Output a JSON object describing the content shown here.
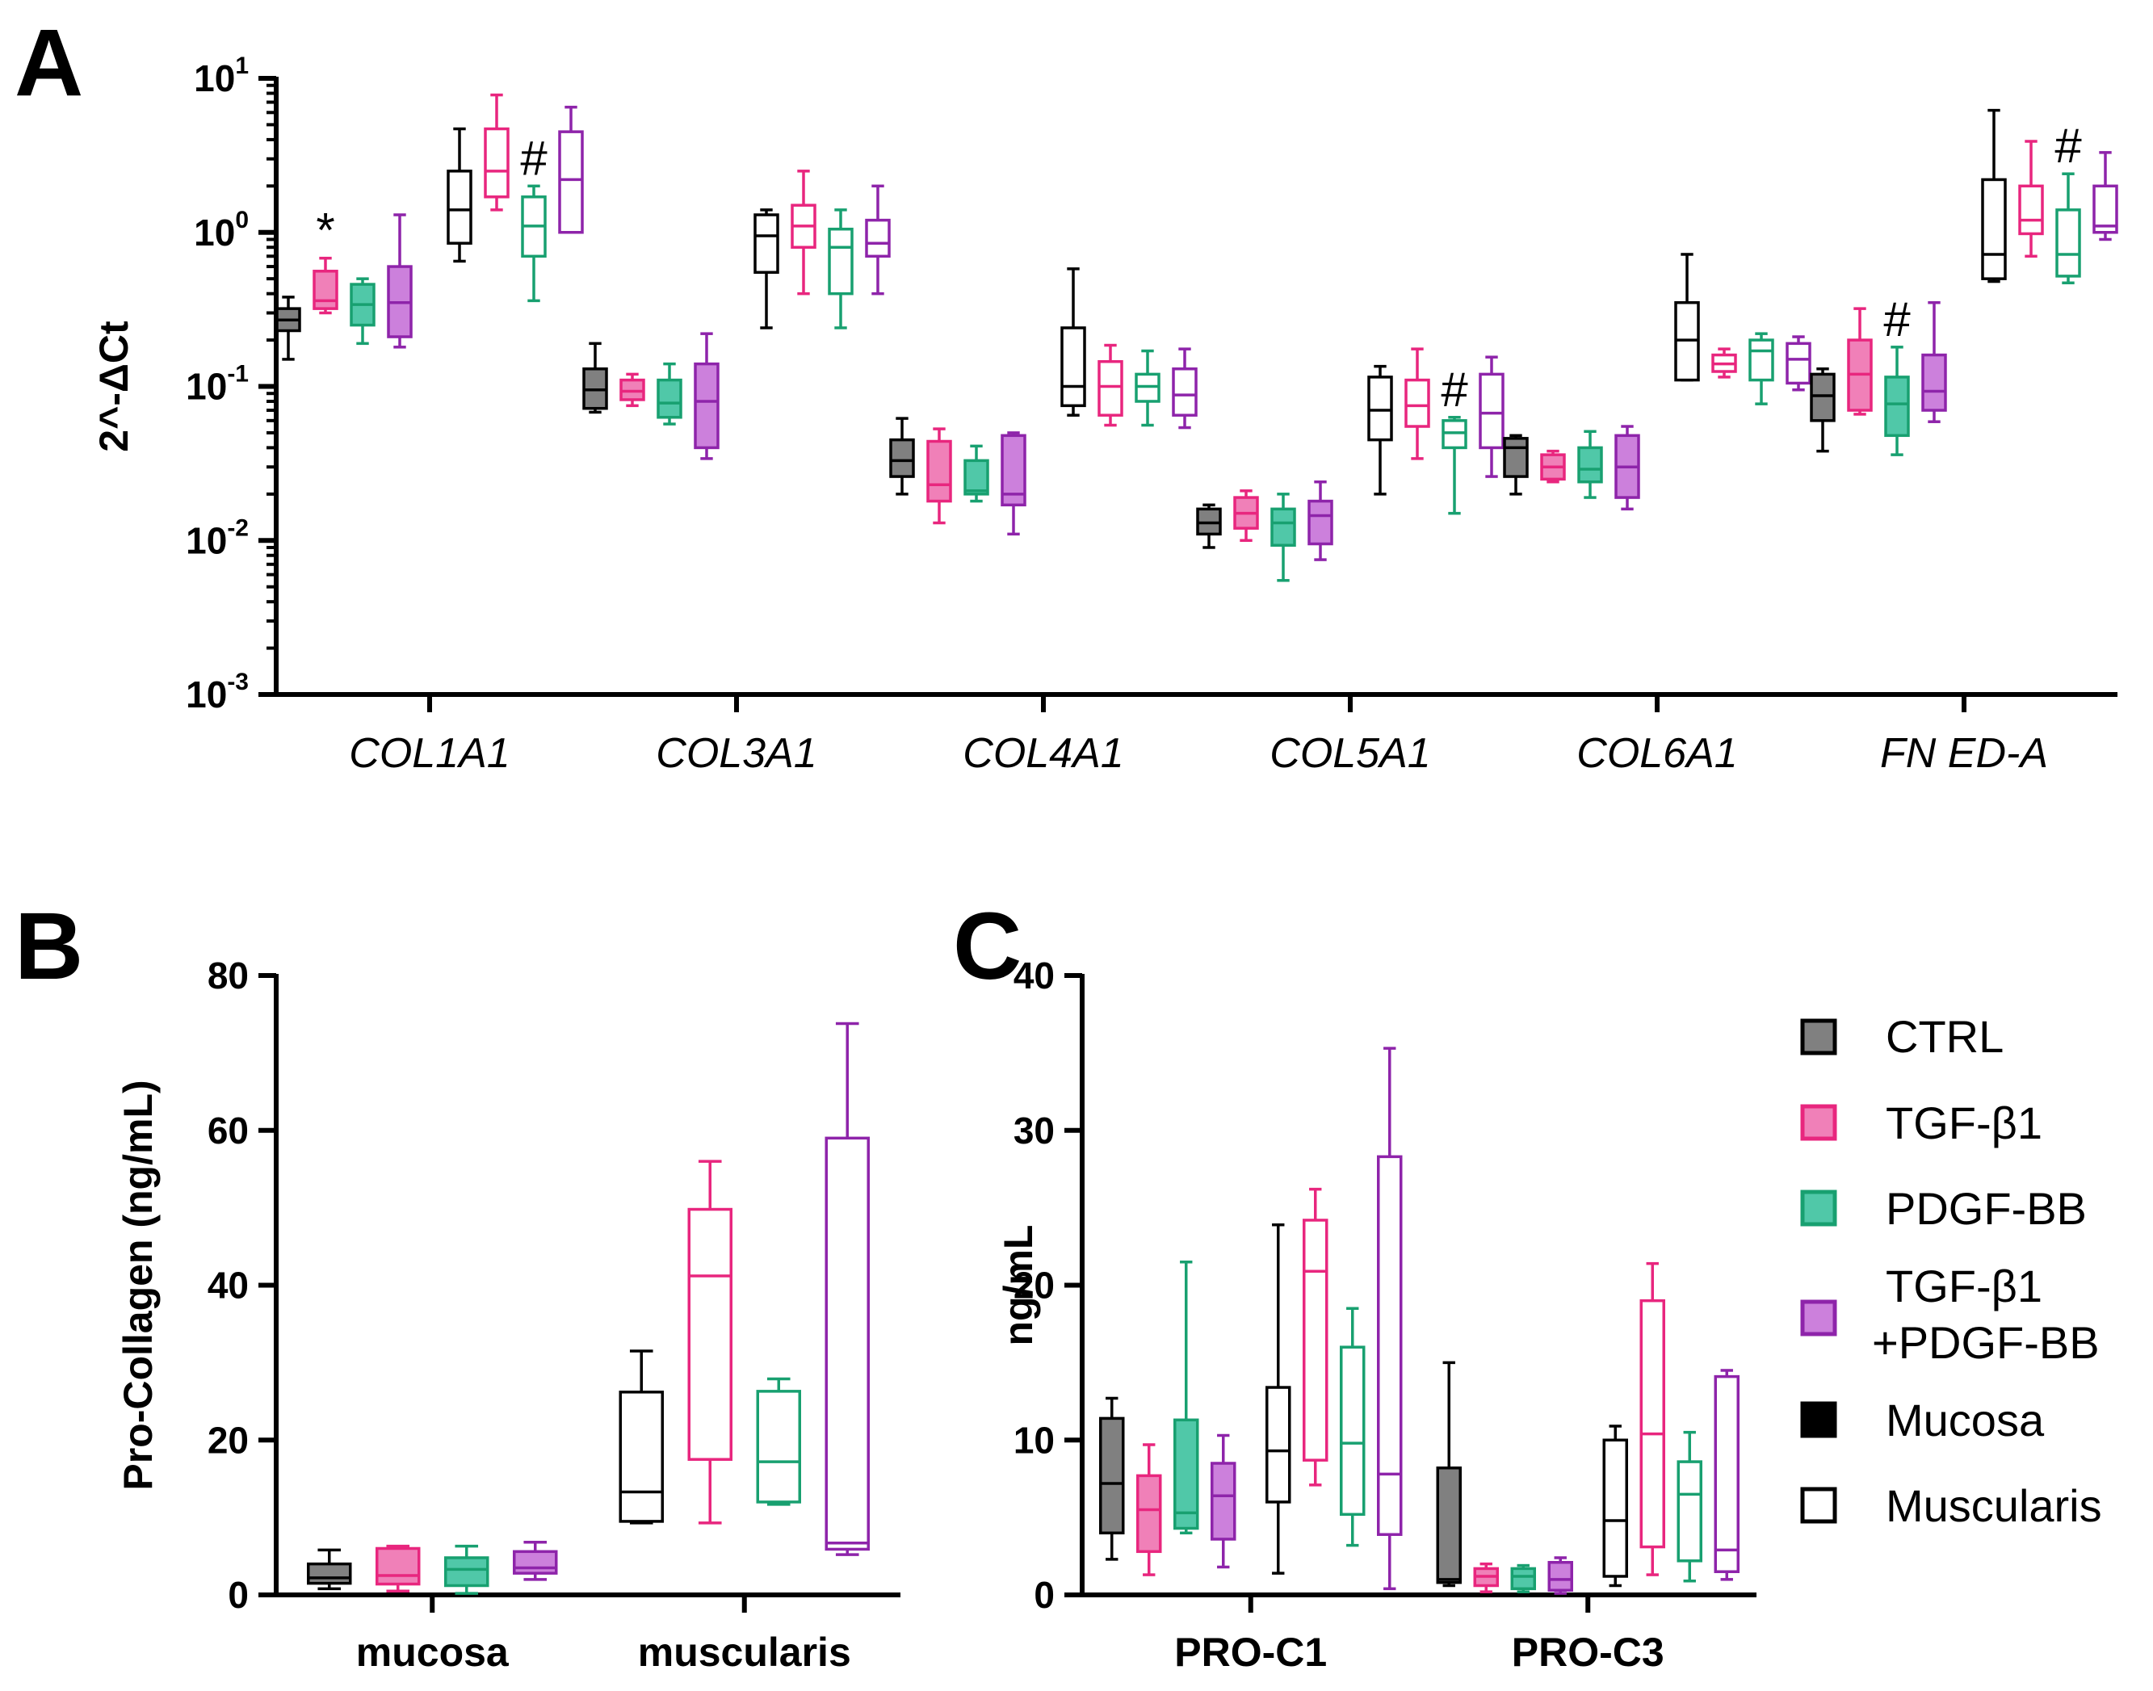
{
  "groups": [
    {
      "name": "CTRL",
      "color": "#000000",
      "fill": "#808080"
    },
    {
      "name": "TGF-β1",
      "color": "#E8267E",
      "fill": "#F080B8"
    },
    {
      "name": "PDGF-BB",
      "color": "#18A070",
      "fill": "#50C8A8"
    },
    {
      "name": "TGF-β1\n+PDGF-BB",
      "color": "#8E24AA",
      "fill": "#CC80DC"
    }
  ],
  "legend": {
    "items": [
      "CTRL",
      "TGF-β1",
      "PDGF-BB",
      "TGF-β1",
      "+PDGF-BB",
      "Mucosa",
      "Muscularis"
    ]
  },
  "chart_data": [
    {
      "panel": "A",
      "type": "box",
      "scale": "log",
      "ylabel": "2^-ΔCt",
      "ylim": [
        0.001,
        10
      ],
      "yticks": [
        {
          "base": "10",
          "exp": "1"
        },
        {
          "base": "10",
          "exp": "0"
        },
        {
          "base": "10",
          "exp": "-1"
        },
        {
          "base": "10",
          "exp": "-2"
        },
        {
          "base": "10",
          "exp": "-3"
        }
      ],
      "categories": [
        "COL1A1",
        "COL3A1",
        "COL4A1",
        "COL5A1",
        "COL6A1",
        "FN ED-A"
      ],
      "tissues": [
        "Mucosa",
        "Muscularis"
      ],
      "boxes": [
        {
          "cat": 0,
          "tissue": 0,
          "group": 0,
          "min": 0.15,
          "q1": 0.23,
          "med": 0.27,
          "q3": 0.32,
          "max": 0.38
        },
        {
          "cat": 0,
          "tissue": 0,
          "group": 1,
          "min": 0.3,
          "q1": 0.32,
          "med": 0.36,
          "q3": 0.56,
          "max": 0.68,
          "annot": "*"
        },
        {
          "cat": 0,
          "tissue": 0,
          "group": 2,
          "min": 0.19,
          "q1": 0.25,
          "med": 0.34,
          "q3": 0.46,
          "max": 0.5
        },
        {
          "cat": 0,
          "tissue": 0,
          "group": 3,
          "min": 0.18,
          "q1": 0.21,
          "med": 0.35,
          "q3": 0.6,
          "max": 1.3
        },
        {
          "cat": 0,
          "tissue": 1,
          "group": 0,
          "min": 0.65,
          "q1": 0.85,
          "med": 1.4,
          "q3": 2.5,
          "max": 4.7
        },
        {
          "cat": 0,
          "tissue": 1,
          "group": 1,
          "min": 1.4,
          "q1": 1.7,
          "med": 2.5,
          "q3": 4.7,
          "max": 7.8
        },
        {
          "cat": 0,
          "tissue": 1,
          "group": 2,
          "min": 0.36,
          "q1": 0.7,
          "med": 1.1,
          "q3": 1.7,
          "max": 2.0,
          "annot": "#"
        },
        {
          "cat": 0,
          "tissue": 1,
          "group": 3,
          "min": 1.0,
          "q1": 1.0,
          "med": 2.2,
          "q3": 4.5,
          "max": 6.5
        },
        {
          "cat": 1,
          "tissue": 0,
          "group": 0,
          "min": 0.068,
          "q1": 0.072,
          "med": 0.095,
          "q3": 0.13,
          "max": 0.19
        },
        {
          "cat": 1,
          "tissue": 0,
          "group": 1,
          "min": 0.075,
          "q1": 0.082,
          "med": 0.093,
          "q3": 0.11,
          "max": 0.12
        },
        {
          "cat": 1,
          "tissue": 0,
          "group": 2,
          "min": 0.057,
          "q1": 0.063,
          "med": 0.078,
          "q3": 0.11,
          "max": 0.14
        },
        {
          "cat": 1,
          "tissue": 0,
          "group": 3,
          "min": 0.034,
          "q1": 0.04,
          "med": 0.08,
          "q3": 0.14,
          "max": 0.22
        },
        {
          "cat": 1,
          "tissue": 1,
          "group": 0,
          "min": 0.24,
          "q1": 0.55,
          "med": 0.95,
          "q3": 1.3,
          "max": 1.4
        },
        {
          "cat": 1,
          "tissue": 1,
          "group": 1,
          "min": 0.4,
          "q1": 0.8,
          "med": 1.1,
          "q3": 1.5,
          "max": 2.5
        },
        {
          "cat": 1,
          "tissue": 1,
          "group": 2,
          "min": 0.24,
          "q1": 0.4,
          "med": 0.8,
          "q3": 1.05,
          "max": 1.4
        },
        {
          "cat": 1,
          "tissue": 1,
          "group": 3,
          "min": 0.4,
          "q1": 0.7,
          "med": 0.85,
          "q3": 1.2,
          "max": 2.0
        },
        {
          "cat": 2,
          "tissue": 0,
          "group": 0,
          "min": 0.02,
          "q1": 0.026,
          "med": 0.033,
          "q3": 0.045,
          "max": 0.062
        },
        {
          "cat": 2,
          "tissue": 0,
          "group": 1,
          "min": 0.013,
          "q1": 0.018,
          "med": 0.023,
          "q3": 0.044,
          "max": 0.053
        },
        {
          "cat": 2,
          "tissue": 0,
          "group": 2,
          "min": 0.018,
          "q1": 0.02,
          "med": 0.021,
          "q3": 0.033,
          "max": 0.041
        },
        {
          "cat": 2,
          "tissue": 0,
          "group": 3,
          "min": 0.011,
          "q1": 0.017,
          "med": 0.02,
          "q3": 0.048,
          "max": 0.05
        },
        {
          "cat": 2,
          "tissue": 1,
          "group": 0,
          "min": 0.065,
          "q1": 0.075,
          "med": 0.1,
          "q3": 0.24,
          "max": 0.58
        },
        {
          "cat": 2,
          "tissue": 1,
          "group": 1,
          "min": 0.056,
          "q1": 0.065,
          "med": 0.1,
          "q3": 0.145,
          "max": 0.185
        },
        {
          "cat": 2,
          "tissue": 1,
          "group": 2,
          "min": 0.056,
          "q1": 0.08,
          "med": 0.1,
          "q3": 0.12,
          "max": 0.17
        },
        {
          "cat": 2,
          "tissue": 1,
          "group": 3,
          "min": 0.054,
          "q1": 0.065,
          "med": 0.088,
          "q3": 0.13,
          "max": 0.175
        },
        {
          "cat": 3,
          "tissue": 0,
          "group": 0,
          "min": 0.009,
          "q1": 0.011,
          "med": 0.013,
          "q3": 0.016,
          "max": 0.017
        },
        {
          "cat": 3,
          "tissue": 0,
          "group": 1,
          "min": 0.01,
          "q1": 0.012,
          "med": 0.015,
          "q3": 0.019,
          "max": 0.021
        },
        {
          "cat": 3,
          "tissue": 0,
          "group": 2,
          "min": 0.0055,
          "q1": 0.0093,
          "med": 0.013,
          "q3": 0.016,
          "max": 0.02
        },
        {
          "cat": 3,
          "tissue": 0,
          "group": 3,
          "min": 0.0075,
          "q1": 0.0095,
          "med": 0.0145,
          "q3": 0.018,
          "max": 0.024
        },
        {
          "cat": 3,
          "tissue": 1,
          "group": 0,
          "min": 0.02,
          "q1": 0.045,
          "med": 0.07,
          "q3": 0.115,
          "max": 0.135
        },
        {
          "cat": 3,
          "tissue": 1,
          "group": 1,
          "min": 0.034,
          "q1": 0.055,
          "med": 0.075,
          "q3": 0.11,
          "max": 0.175
        },
        {
          "cat": 3,
          "tissue": 1,
          "group": 2,
          "min": 0.015,
          "q1": 0.04,
          "med": 0.05,
          "q3": 0.06,
          "max": 0.063,
          "annot": "#"
        },
        {
          "cat": 3,
          "tissue": 1,
          "group": 3,
          "min": 0.026,
          "q1": 0.04,
          "med": 0.067,
          "q3": 0.12,
          "max": 0.155
        },
        {
          "cat": 4,
          "tissue": 0,
          "group": 0,
          "min": 0.02,
          "q1": 0.026,
          "med": 0.04,
          "q3": 0.046,
          "max": 0.048
        },
        {
          "cat": 4,
          "tissue": 0,
          "group": 1,
          "min": 0.024,
          "q1": 0.025,
          "med": 0.03,
          "q3": 0.036,
          "max": 0.038
        },
        {
          "cat": 4,
          "tissue": 0,
          "group": 2,
          "min": 0.019,
          "q1": 0.024,
          "med": 0.029,
          "q3": 0.04,
          "max": 0.051
        },
        {
          "cat": 4,
          "tissue": 0,
          "group": 3,
          "min": 0.016,
          "q1": 0.019,
          "med": 0.03,
          "q3": 0.048,
          "max": 0.055
        },
        {
          "cat": 4,
          "tissue": 1,
          "group": 0,
          "min": 0.11,
          "q1": 0.11,
          "med": 0.2,
          "q3": 0.35,
          "max": 0.72
        },
        {
          "cat": 4,
          "tissue": 1,
          "group": 1,
          "min": 0.115,
          "q1": 0.125,
          "med": 0.14,
          "q3": 0.16,
          "max": 0.175
        },
        {
          "cat": 4,
          "tissue": 1,
          "group": 2,
          "min": 0.077,
          "q1": 0.11,
          "med": 0.17,
          "q3": 0.2,
          "max": 0.22
        },
        {
          "cat": 4,
          "tissue": 1,
          "group": 3,
          "min": 0.095,
          "q1": 0.105,
          "med": 0.15,
          "q3": 0.19,
          "max": 0.21
        },
        {
          "cat": 5,
          "tissue": 0,
          "group": 0,
          "min": 0.038,
          "q1": 0.06,
          "med": 0.087,
          "q3": 0.12,
          "max": 0.13
        },
        {
          "cat": 5,
          "tissue": 0,
          "group": 1,
          "min": 0.066,
          "q1": 0.07,
          "med": 0.12,
          "q3": 0.2,
          "max": 0.32
        },
        {
          "cat": 5,
          "tissue": 0,
          "group": 2,
          "min": 0.036,
          "q1": 0.048,
          "med": 0.077,
          "q3": 0.115,
          "max": 0.18,
          "annot": "#"
        },
        {
          "cat": 5,
          "tissue": 0,
          "group": 3,
          "min": 0.059,
          "q1": 0.07,
          "med": 0.093,
          "q3": 0.16,
          "max": 0.35
        },
        {
          "cat": 5,
          "tissue": 1,
          "group": 0,
          "min": 0.48,
          "q1": 0.5,
          "med": 0.72,
          "q3": 2.2,
          "max": 6.2
        },
        {
          "cat": 5,
          "tissue": 1,
          "group": 1,
          "min": 0.7,
          "q1": 0.98,
          "med": 1.2,
          "q3": 2.0,
          "max": 3.9
        },
        {
          "cat": 5,
          "tissue": 1,
          "group": 2,
          "min": 0.47,
          "q1": 0.52,
          "med": 0.72,
          "q3": 1.4,
          "max": 2.4,
          "annot": "#"
        },
        {
          "cat": 5,
          "tissue": 1,
          "group": 3,
          "min": 0.9,
          "q1": 1.0,
          "med": 1.1,
          "q3": 2.0,
          "max": 3.3
        }
      ]
    },
    {
      "panel": "B",
      "type": "box",
      "scale": "linear",
      "ylabel": "Pro-Collagen (ng/mL)",
      "ylim": [
        0,
        80
      ],
      "yticks": [
        "0",
        "20",
        "40",
        "60",
        "80"
      ],
      "categories": [
        "mucosa",
        "muscularis"
      ],
      "boxes": [
        {
          "cat": 0,
          "group": 0,
          "min": 0.8,
          "q1": 1.5,
          "med": 2.2,
          "q3": 4.0,
          "max": 5.8
        },
        {
          "cat": 0,
          "group": 1,
          "min": 0.5,
          "q1": 1.4,
          "med": 2.5,
          "q3": 6.0,
          "max": 6.3
        },
        {
          "cat": 0,
          "group": 2,
          "min": 0.2,
          "q1": 1.2,
          "med": 3.3,
          "q3": 4.8,
          "max": 6.3
        },
        {
          "cat": 0,
          "group": 3,
          "min": 2.0,
          "q1": 2.8,
          "med": 3.5,
          "q3": 5.6,
          "max": 6.8
        },
        {
          "cat": 1,
          "group": 0,
          "min": 9.3,
          "q1": 9.5,
          "med": 13.3,
          "q3": 26.2,
          "max": 31.5
        },
        {
          "cat": 1,
          "group": 1,
          "min": 9.3,
          "q1": 17.5,
          "med": 41.2,
          "q3": 49.8,
          "max": 56.0
        },
        {
          "cat": 1,
          "group": 2,
          "min": 11.7,
          "q1": 12.0,
          "med": 17.2,
          "q3": 26.3,
          "max": 27.9
        },
        {
          "cat": 1,
          "group": 3,
          "min": 5.2,
          "q1": 5.9,
          "med": 6.7,
          "q3": 59.0,
          "max": 73.8
        }
      ]
    },
    {
      "panel": "C",
      "type": "box",
      "scale": "linear",
      "ylabel": "ng/mL",
      "ylim": [
        0,
        40
      ],
      "yticks": [
        "0",
        "10",
        "20",
        "30",
        "40"
      ],
      "categories": [
        "PRO-C1",
        "PRO-C3"
      ],
      "tissues": [
        "Mucosa",
        "Muscularis"
      ],
      "boxes": [
        {
          "cat": 0,
          "tissue": 0,
          "group": 0,
          "min": 2.3,
          "q1": 4.0,
          "med": 7.2,
          "q3": 11.4,
          "max": 12.7
        },
        {
          "cat": 0,
          "tissue": 0,
          "group": 1,
          "min": 1.3,
          "q1": 2.8,
          "med": 5.5,
          "q3": 7.7,
          "max": 9.7
        },
        {
          "cat": 0,
          "tissue": 0,
          "group": 2,
          "min": 4.0,
          "q1": 4.3,
          "med": 5.3,
          "q3": 11.3,
          "max": 21.5
        },
        {
          "cat": 0,
          "tissue": 0,
          "group": 3,
          "min": 1.8,
          "q1": 3.6,
          "med": 6.4,
          "q3": 8.5,
          "max": 10.3
        },
        {
          "cat": 0,
          "tissue": 1,
          "group": 0,
          "min": 1.4,
          "q1": 6.0,
          "med": 9.3,
          "q3": 13.4,
          "max": 23.9
        },
        {
          "cat": 0,
          "tissue": 1,
          "group": 1,
          "min": 7.1,
          "q1": 8.7,
          "med": 20.9,
          "q3": 24.2,
          "max": 26.2
        },
        {
          "cat": 0,
          "tissue": 1,
          "group": 2,
          "min": 3.2,
          "q1": 5.2,
          "med": 9.8,
          "q3": 16.0,
          "max": 18.5
        },
        {
          "cat": 0,
          "tissue": 1,
          "group": 3,
          "min": 0.4,
          "q1": 3.9,
          "med": 7.8,
          "q3": 28.3,
          "max": 35.3
        },
        {
          "cat": 1,
          "tissue": 0,
          "group": 0,
          "min": 0.6,
          "q1": 0.8,
          "med": 1.0,
          "q3": 8.2,
          "max": 15.0
        },
        {
          "cat": 1,
          "tissue": 0,
          "group": 1,
          "min": 0.2,
          "q1": 0.6,
          "med": 1.2,
          "q3": 1.7,
          "max": 2.0
        },
        {
          "cat": 1,
          "tissue": 0,
          "group": 2,
          "min": 0.2,
          "q1": 0.4,
          "med": 1.2,
          "q3": 1.7,
          "max": 1.9
        },
        {
          "cat": 1,
          "tissue": 0,
          "group": 3,
          "min": 0.1,
          "q1": 0.3,
          "med": 1.0,
          "q3": 2.1,
          "max": 2.4
        },
        {
          "cat": 1,
          "tissue": 1,
          "group": 0,
          "min": 0.6,
          "q1": 1.2,
          "med": 4.8,
          "q3": 10.0,
          "max": 10.9
        },
        {
          "cat": 1,
          "tissue": 1,
          "group": 1,
          "min": 1.3,
          "q1": 3.1,
          "med": 10.4,
          "q3": 19.0,
          "max": 21.4
        },
        {
          "cat": 1,
          "tissue": 1,
          "group": 2,
          "min": 0.9,
          "q1": 2.2,
          "med": 6.5,
          "q3": 8.6,
          "max": 10.5
        },
        {
          "cat": 1,
          "tissue": 1,
          "group": 3,
          "min": 1.0,
          "q1": 1.5,
          "med": 2.9,
          "q3": 14.1,
          "max": 14.5
        }
      ]
    }
  ],
  "panel_labels": [
    "A",
    "B",
    "C"
  ]
}
